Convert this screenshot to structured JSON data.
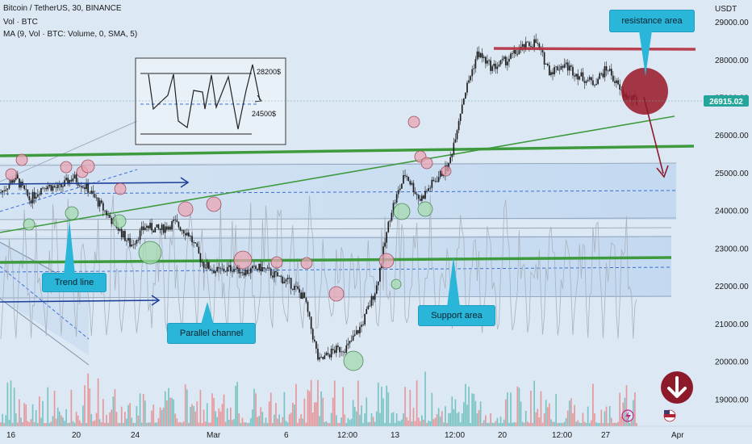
{
  "header": {
    "symbol_line": "Bitcoin / TetherUS, 30, BINANCE",
    "vol_line": "Vol · BTC",
    "ma_line": "MA (9, Vol · BTC: Volume, 0, SMA, 5)"
  },
  "axis": {
    "currency": "USDT",
    "price_badge": "26915.02"
  },
  "callouts": {
    "resistance": "resistance area",
    "trend": "Trend line",
    "parallel": "Parallel channel",
    "support": "Support area"
  },
  "inset": {
    "upper_label": "28200$",
    "lower_label": "24500$"
  },
  "colors": {
    "up": "#26a69a",
    "down": "#ef5350",
    "green_line": "#3d9a3d",
    "resistance": "#9b1d2c",
    "channel_blue": "#1e3f9a",
    "badge": "#26a69a",
    "callout": "#29b6d8"
  },
  "icons": {
    "signal_button": "down-arrow-circle-icon",
    "lightning": "lightning-icon",
    "flag": "us-flag-icon"
  },
  "chart_data": {
    "type": "candlestick",
    "ylim": [
      18300,
      29600
    ],
    "y_ticks": [
      19000,
      20000,
      21000,
      22000,
      23000,
      24000,
      25000,
      26000,
      27000,
      28000,
      29000
    ],
    "y_tick_labels": [
      "19000.00",
      "20000.00",
      "21000.00",
      "22000.00",
      "23000.00",
      "24000.00",
      "25000.00",
      "26000.00",
      "27000.00",
      "28000.00",
      "29000.00"
    ],
    "x_tick_labels": [
      "16",
      "20",
      "24",
      "Mar",
      "6",
      "12:00",
      "13",
      "12:00",
      "20",
      "12:00",
      "27",
      "Apr"
    ],
    "last_price": 26915.02,
    "price_path": [
      {
        "t": "16",
        "p": 24500
      },
      {
        "t": "17",
        "p": 24900
      },
      {
        "t": "18",
        "p": 24300
      },
      {
        "t": "19",
        "p": 24700
      },
      {
        "t": "20",
        "p": 24600
      },
      {
        "t": "21",
        "p": 24900
      },
      {
        "t": "22",
        "p": 24600
      },
      {
        "t": "23",
        "p": 24100
      },
      {
        "t": "24",
        "p": 23600
      },
      {
        "t": "25",
        "p": 23100
      },
      {
        "t": "26",
        "p": 23600
      },
      {
        "t": "27",
        "p": 23500
      },
      {
        "t": "28",
        "p": 23700
      },
      {
        "t": "Mar",
        "p": 23400
      },
      {
        "t": "2",
        "p": 22600
      },
      {
        "t": "3",
        "p": 22400
      },
      {
        "t": "4",
        "p": 22500
      },
      {
        "t": "5",
        "p": 22400
      },
      {
        "t": "6",
        "p": 22500
      },
      {
        "t": "7",
        "p": 22300
      },
      {
        "t": "8",
        "p": 22100
      },
      {
        "t": "9",
        "p": 21700
      },
      {
        "t": "10",
        "p": 20000
      },
      {
        "t": "11",
        "p": 20300
      },
      {
        "t": "12",
        "p": 20400
      },
      {
        "t": "12:00",
        "p": 21000
      },
      {
        "t": "13",
        "p": 22000
      },
      {
        "t": "13b",
        "p": 24000
      },
      {
        "t": "14",
        "p": 25000
      },
      {
        "t": "15",
        "p": 24300
      },
      {
        "t": "16",
        "p": 24800
      },
      {
        "t": "17",
        "p": 25200
      },
      {
        "t": "18",
        "p": 27000
      },
      {
        "t": "19",
        "p": 28200
      },
      {
        "t": "20",
        "p": 27800
      },
      {
        "t": "21",
        "p": 28000
      },
      {
        "t": "22",
        "p": 28300
      },
      {
        "t": "23",
        "p": 28500
      },
      {
        "t": "24",
        "p": 27700
      },
      {
        "t": "25",
        "p": 27900
      },
      {
        "t": "26",
        "p": 27600
      },
      {
        "t": "27",
        "p": 27400
      },
      {
        "t": "27b",
        "p": 27800
      },
      {
        "t": "28",
        "p": 27100
      },
      {
        "t": "29",
        "p": 26915
      }
    ]
  }
}
